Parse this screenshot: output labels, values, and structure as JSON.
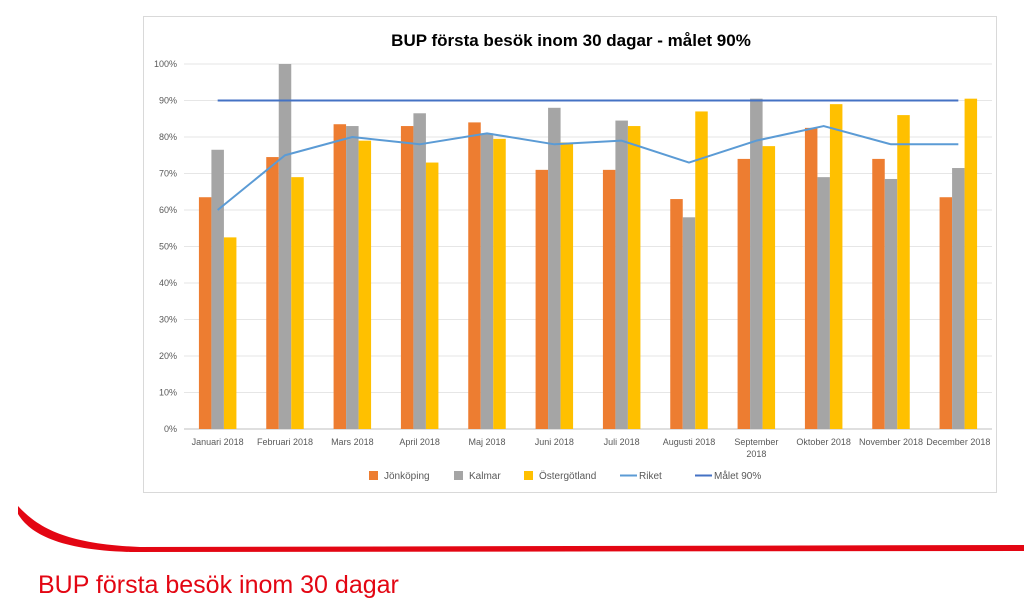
{
  "slide": {
    "title": "BUP första besök inom 30 dagar"
  },
  "chart_data": {
    "type": "bar",
    "title": "BUP första besök inom 30 dagar - målet 90%",
    "xlabel": "",
    "ylabel": "",
    "ylim": [
      0,
      100
    ],
    "y_ticks": [
      "0%",
      "10%",
      "20%",
      "30%",
      "40%",
      "50%",
      "60%",
      "70%",
      "80%",
      "90%",
      "100%"
    ],
    "grid": true,
    "legend_position": "bottom",
    "categories": [
      [
        "Januari 2018"
      ],
      [
        "Februari 2018"
      ],
      [
        "Mars 2018"
      ],
      [
        "April 2018"
      ],
      [
        "Maj 2018"
      ],
      [
        "Juni 2018"
      ],
      [
        "Juli 2018"
      ],
      [
        "Augusti 2018"
      ],
      [
        "September",
        "2018"
      ],
      [
        "Oktober 2018"
      ],
      [
        "November 2018"
      ],
      [
        "December 2018"
      ]
    ],
    "series": [
      {
        "name": "Jönköping",
        "kind": "bar",
        "color": "#ed7d31",
        "values": [
          63.5,
          74.5,
          83.5,
          83,
          84,
          71,
          71,
          63,
          74,
          82.5,
          74,
          63.5
        ]
      },
      {
        "name": "Kalmar",
        "kind": "bar",
        "color": "#a5a5a5",
        "values": [
          76.5,
          100,
          83,
          86.5,
          81,
          88,
          84.5,
          58,
          90.5,
          69,
          68.5,
          71.5
        ]
      },
      {
        "name": "Östergötland",
        "kind": "bar",
        "color": "#ffc000",
        "values": [
          52.5,
          69,
          79,
          73,
          79.5,
          78.5,
          83,
          87,
          77.5,
          89,
          86,
          90.5
        ]
      },
      {
        "name": "Riket",
        "kind": "line",
        "color": "#5b9bd5",
        "values": [
          60,
          75,
          80,
          78,
          81,
          78,
          79,
          73,
          79,
          83,
          78,
          78
        ]
      },
      {
        "name": "Målet 90%",
        "kind": "line",
        "color": "#4472c4",
        "values": [
          90,
          90,
          90,
          90,
          90,
          90,
          90,
          90,
          90,
          90,
          90,
          90
        ]
      }
    ]
  }
}
